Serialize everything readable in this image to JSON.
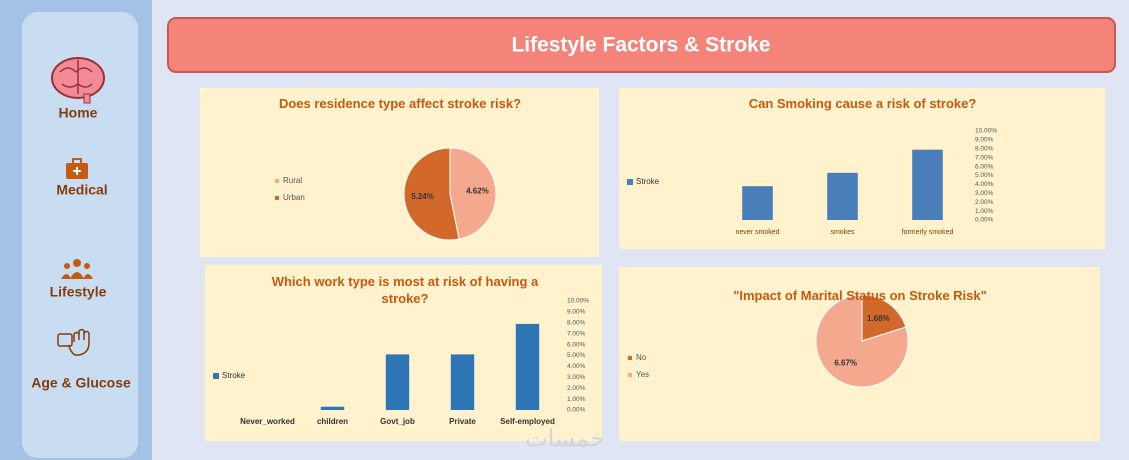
{
  "header": {
    "title": "Lifestyle Factors & Stroke"
  },
  "nav": [
    "Home",
    "Medical",
    "Lifestyle",
    "Age & Glucose"
  ],
  "watermark": "خمسات",
  "chart_data": [
    {
      "type": "pie",
      "title": "Does residence type affect stroke risk?",
      "categories": [
        "Rural",
        "Urban"
      ],
      "values": [
        4.62,
        5.24
      ],
      "value_labels": [
        "4.62%",
        "5.24%"
      ],
      "colors": [
        "#f4a88e",
        "#d2692b"
      ],
      "legend": "left"
    },
    {
      "type": "bar",
      "title": "Can Smoking cause a risk of stroke?",
      "categories": [
        "never smoked",
        "smokes",
        "formerly smoked"
      ],
      "series": [
        {
          "name": "Stroke",
          "color": "#4a7ebb",
          "values": [
            3.8,
            5.3,
            7.9
          ]
        }
      ],
      "ylim": [
        0,
        10
      ],
      "yticks": [
        {
          "value": 0,
          "label": "0.00%"
        },
        {
          "value": 1,
          "label": "1.00%"
        },
        {
          "value": 2,
          "label": "2.00%"
        },
        {
          "value": 3,
          "label": "3.00%"
        },
        {
          "value": 4,
          "label": "4.00%"
        },
        {
          "value": 5,
          "label": "5.00%"
        },
        {
          "value": 6,
          "label": "6.00%"
        },
        {
          "value": 7,
          "label": "7.00%"
        },
        {
          "value": 8,
          "label": "8.00%"
        },
        {
          "value": 9,
          "label": "9.00%"
        },
        {
          "value": 10,
          "label": "10.00%"
        }
      ],
      "legend": "left"
    },
    {
      "type": "bar",
      "title": "Which work type is most at risk of having a stroke?",
      "categories": [
        "Never_worked",
        "children",
        "Govt_job",
        "Private",
        "Self-employed"
      ],
      "series": [
        {
          "name": "Stroke",
          "color": "#2e75b6",
          "values": [
            0,
            0.3,
            5.1,
            5.1,
            7.9
          ]
        }
      ],
      "ylim": [
        0,
        10
      ],
      "yticks": [
        {
          "value": 0,
          "label": "0.00%"
        },
        {
          "value": 1,
          "label": "1.00%"
        },
        {
          "value": 2,
          "label": "2.00%"
        },
        {
          "value": 3,
          "label": "3.00%"
        },
        {
          "value": 4,
          "label": "4.00%"
        },
        {
          "value": 5,
          "label": "5.00%"
        },
        {
          "value": 6,
          "label": "6.00%"
        },
        {
          "value": 7,
          "label": "7.00%"
        },
        {
          "value": 8,
          "label": "8.00%"
        },
        {
          "value": 9,
          "label": "9.00%"
        },
        {
          "value": 10,
          "label": "10.00%"
        }
      ],
      "legend": "left"
    },
    {
      "type": "pie",
      "title": "\"Impact of Marital Status on Stroke Risk\"",
      "categories": [
        "No",
        "Yes"
      ],
      "values": [
        1.68,
        6.67
      ],
      "value_labels": [
        "1.68%",
        "6.67%"
      ],
      "colors": [
        "#d2692b",
        "#f4a88e"
      ],
      "legend": "left"
    }
  ]
}
